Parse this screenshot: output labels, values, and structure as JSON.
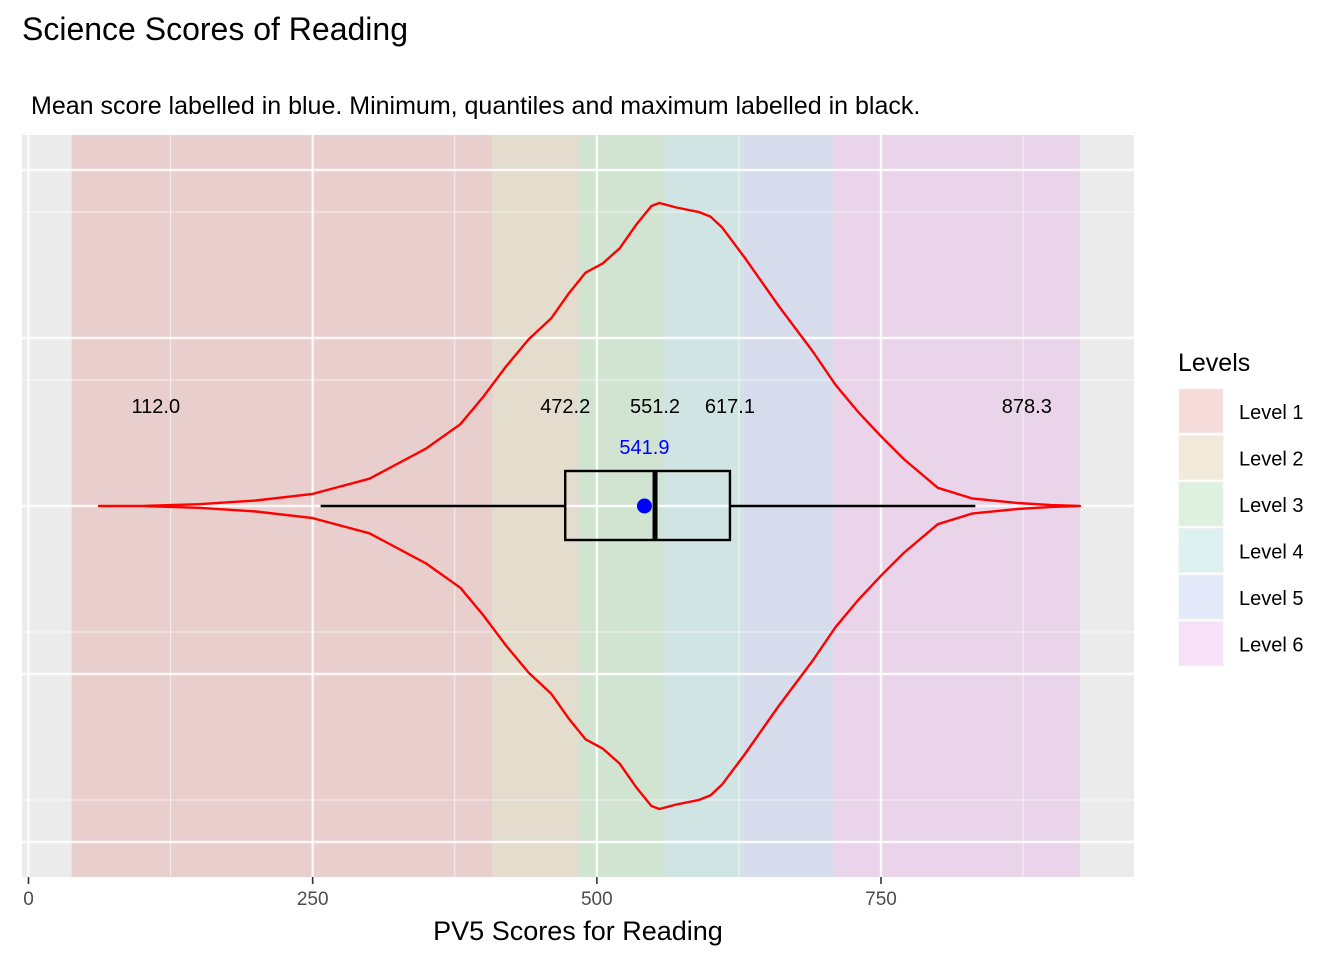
{
  "chart_data": {
    "type": "violin",
    "title": "Science Scores of Reading",
    "subtitle": "Mean score labelled in blue. Minimum, quantiles and maximum labelled in black.",
    "xlabel": "PV5 Scores for Reading",
    "ylabel": "",
    "xlim": [
      0,
      975
    ],
    "x_ticks": [
      0,
      250,
      500,
      750
    ],
    "grid": true,
    "legend": {
      "title": "Levels",
      "placement": "right",
      "items": [
        {
          "label": "Level 1",
          "color": "#e8a0a0"
        },
        {
          "label": "Level 2",
          "color": "#d9c9a0"
        },
        {
          "label": "Level 3",
          "color": "#a8d8a8"
        },
        {
          "label": "Level 4",
          "color": "#a8dada"
        },
        {
          "label": "Level 5",
          "color": "#b8c4ee"
        },
        {
          "label": "Level 6",
          "color": "#e8b0e8"
        }
      ]
    },
    "bands": [
      {
        "level": "Level 1",
        "from": 38,
        "to": 408
      },
      {
        "level": "Level 2",
        "from": 408,
        "to": 484
      },
      {
        "level": "Level 3",
        "from": 484,
        "to": 559
      },
      {
        "level": "Level 4",
        "from": 559,
        "to": 629
      },
      {
        "level": "Level 5",
        "from": 629,
        "to": 708
      },
      {
        "level": "Level 6",
        "from": 708,
        "to": 925
      }
    ],
    "violin": {
      "color": "#ff0000",
      "density": [
        {
          "x": 62,
          "d": 0.0
        },
        {
          "x": 100,
          "d": 0.0
        },
        {
          "x": 150,
          "d": 0.006
        },
        {
          "x": 200,
          "d": 0.018
        },
        {
          "x": 250,
          "d": 0.04
        },
        {
          "x": 300,
          "d": 0.09
        },
        {
          "x": 350,
          "d": 0.19
        },
        {
          "x": 380,
          "d": 0.27
        },
        {
          "x": 400,
          "d": 0.36
        },
        {
          "x": 420,
          "d": 0.46
        },
        {
          "x": 440,
          "d": 0.55
        },
        {
          "x": 460,
          "d": 0.62
        },
        {
          "x": 475,
          "d": 0.7
        },
        {
          "x": 490,
          "d": 0.77
        },
        {
          "x": 505,
          "d": 0.8
        },
        {
          "x": 520,
          "d": 0.85
        },
        {
          "x": 535,
          "d": 0.93
        },
        {
          "x": 548,
          "d": 0.99
        },
        {
          "x": 555,
          "d": 1.0
        },
        {
          "x": 570,
          "d": 0.985
        },
        {
          "x": 590,
          "d": 0.97
        },
        {
          "x": 600,
          "d": 0.955
        },
        {
          "x": 610,
          "d": 0.92
        },
        {
          "x": 630,
          "d": 0.82
        },
        {
          "x": 660,
          "d": 0.66
        },
        {
          "x": 690,
          "d": 0.51
        },
        {
          "x": 710,
          "d": 0.4
        },
        {
          "x": 730,
          "d": 0.31
        },
        {
          "x": 750,
          "d": 0.23
        },
        {
          "x": 770,
          "d": 0.155
        },
        {
          "x": 800,
          "d": 0.06
        },
        {
          "x": 830,
          "d": 0.025
        },
        {
          "x": 870,
          "d": 0.01
        },
        {
          "x": 900,
          "d": 0.003
        },
        {
          "x": 925,
          "d": 0.0
        }
      ]
    },
    "boxplot": {
      "whisker_low": 257,
      "q1": 472.2,
      "median": 551.2,
      "q3": 617.1,
      "whisker_high": 833,
      "mean": 541.9
    },
    "annotations": [
      {
        "text": "112.0",
        "x": 112.0,
        "color": "#000000"
      },
      {
        "text": "472.2",
        "x": 472.2,
        "color": "#000000"
      },
      {
        "text": "551.2",
        "x": 551.2,
        "color": "#000000"
      },
      {
        "text": "617.1",
        "x": 617.1,
        "color": "#000000"
      },
      {
        "text": "878.3",
        "x": 878.3,
        "color": "#000000"
      },
      {
        "text": "541.9",
        "x": 541.9,
        "color": "#0000ff",
        "mean": true
      }
    ]
  }
}
